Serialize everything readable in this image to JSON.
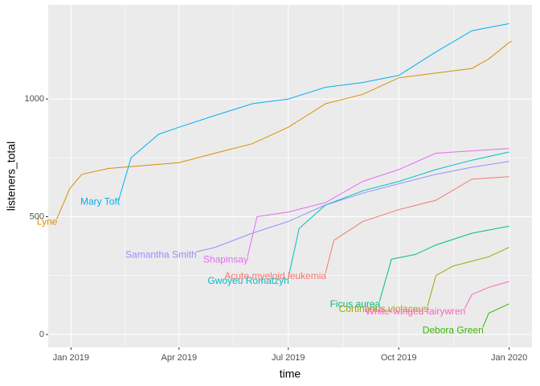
{
  "chart_data": {
    "type": "line",
    "xlabel": "time",
    "ylabel": "listeners_total",
    "xlim": [
      "2018-12-13",
      "2020-01-20"
    ],
    "xticks": [
      {
        "value": "2019-01-01",
        "label": "Jan 2019"
      },
      {
        "value": "2019-04-01",
        "label": "Apr 2019"
      },
      {
        "value": "2019-07-01",
        "label": "Jul 2019"
      },
      {
        "value": "2019-10-01",
        "label": "Oct 2019"
      },
      {
        "value": "2020-01-01",
        "label": "Jan 2020"
      }
    ],
    "ylim": [
      -55,
      1400
    ],
    "yticks": [
      0,
      500,
      1000
    ],
    "grid": true,
    "series": [
      {
        "name": "Lyne",
        "color": "#D89000",
        "x": [
          "2018-12-20",
          "2018-12-31",
          "2019-01-10",
          "2019-02-01",
          "2019-04-01",
          "2019-05-01",
          "2019-06-01",
          "2019-07-01",
          "2019-08-01",
          "2019-09-01",
          "2019-10-01",
          "2019-12-01",
          "2019-12-15",
          "2020-01-01",
          "2020-01-03"
        ],
        "values": [
          490,
          620,
          680,
          705,
          730,
          770,
          810,
          880,
          980,
          1020,
          1090,
          1130,
          1170,
          1240,
          1245
        ]
      },
      {
        "name": "Mary Toft",
        "color": "#00B0F6",
        "x": [
          "2019-02-10",
          "2019-02-20",
          "2019-03-15",
          "2019-04-01",
          "2019-05-01",
          "2019-06-01",
          "2019-07-01",
          "2019-08-01",
          "2019-09-01",
          "2019-10-01",
          "2019-11-01",
          "2019-12-01",
          "2020-01-01"
        ],
        "values": [
          575,
          750,
          850,
          880,
          930,
          980,
          1000,
          1050,
          1070,
          1100,
          1200,
          1290,
          1320
        ]
      },
      {
        "name": "Samantha Smith",
        "color": "#9590FF",
        "x": [
          "2019-04-15",
          "2019-05-01",
          "2019-06-01",
          "2019-07-01",
          "2019-08-01",
          "2019-09-01",
          "2019-10-01",
          "2019-11-01",
          "2019-12-01",
          "2020-01-01"
        ],
        "values": [
          350,
          370,
          430,
          480,
          550,
          600,
          640,
          680,
          710,
          735
        ]
      },
      {
        "name": "Shapinsay",
        "color": "#E76BF3",
        "x": [
          "2019-05-28",
          "2019-06-05",
          "2019-07-01",
          "2019-08-01",
          "2019-09-01",
          "2019-10-01",
          "2019-11-01",
          "2020-01-01"
        ],
        "values": [
          330,
          500,
          520,
          560,
          650,
          700,
          770,
          790
        ]
      },
      {
        "name": "Acute myeloid leukemia",
        "color": "#F8766D",
        "x": [
          "2019-08-01",
          "2019-08-08",
          "2019-09-01",
          "2019-10-01",
          "2019-11-01",
          "2019-12-01",
          "2020-01-01"
        ],
        "values": [
          260,
          400,
          480,
          530,
          570,
          660,
          670
        ]
      },
      {
        "name": "Gwoyeu Romatzyh",
        "color": "#00BFC4",
        "x": [
          "2019-07-01",
          "2019-07-10",
          "2019-08-01",
          "2019-09-01",
          "2019-10-01",
          "2019-11-01",
          "2019-12-01",
          "2020-01-01"
        ],
        "values": [
          240,
          450,
          550,
          610,
          650,
          700,
          740,
          775
        ]
      },
      {
        "name": "Ficus aurea",
        "color": "#00BF7D",
        "x": [
          "2019-09-15",
          "2019-09-25",
          "2019-10-15",
          "2019-11-01",
          "2019-12-01",
          "2020-01-01"
        ],
        "values": [
          140,
          320,
          340,
          380,
          430,
          460
        ]
      },
      {
        "name": "Cortinarius violaceus",
        "color": "#A3A500",
        "x": [
          "2019-10-25",
          "2019-11-01",
          "2019-11-15",
          "2019-12-15",
          "2020-01-01"
        ],
        "values": [
          120,
          250,
          290,
          330,
          370
        ]
      },
      {
        "name": "White-winged fairywren",
        "color": "#FF62BC",
        "x": [
          "2019-11-25",
          "2019-12-01",
          "2019-12-15",
          "2020-01-01"
        ],
        "values": [
          110,
          170,
          200,
          225
        ]
      },
      {
        "name": "Debora Green",
        "color": "#39B600",
        "x": [
          "2019-12-10",
          "2019-12-15",
          "2020-01-01"
        ],
        "values": [
          30,
          90,
          130
        ]
      }
    ]
  }
}
